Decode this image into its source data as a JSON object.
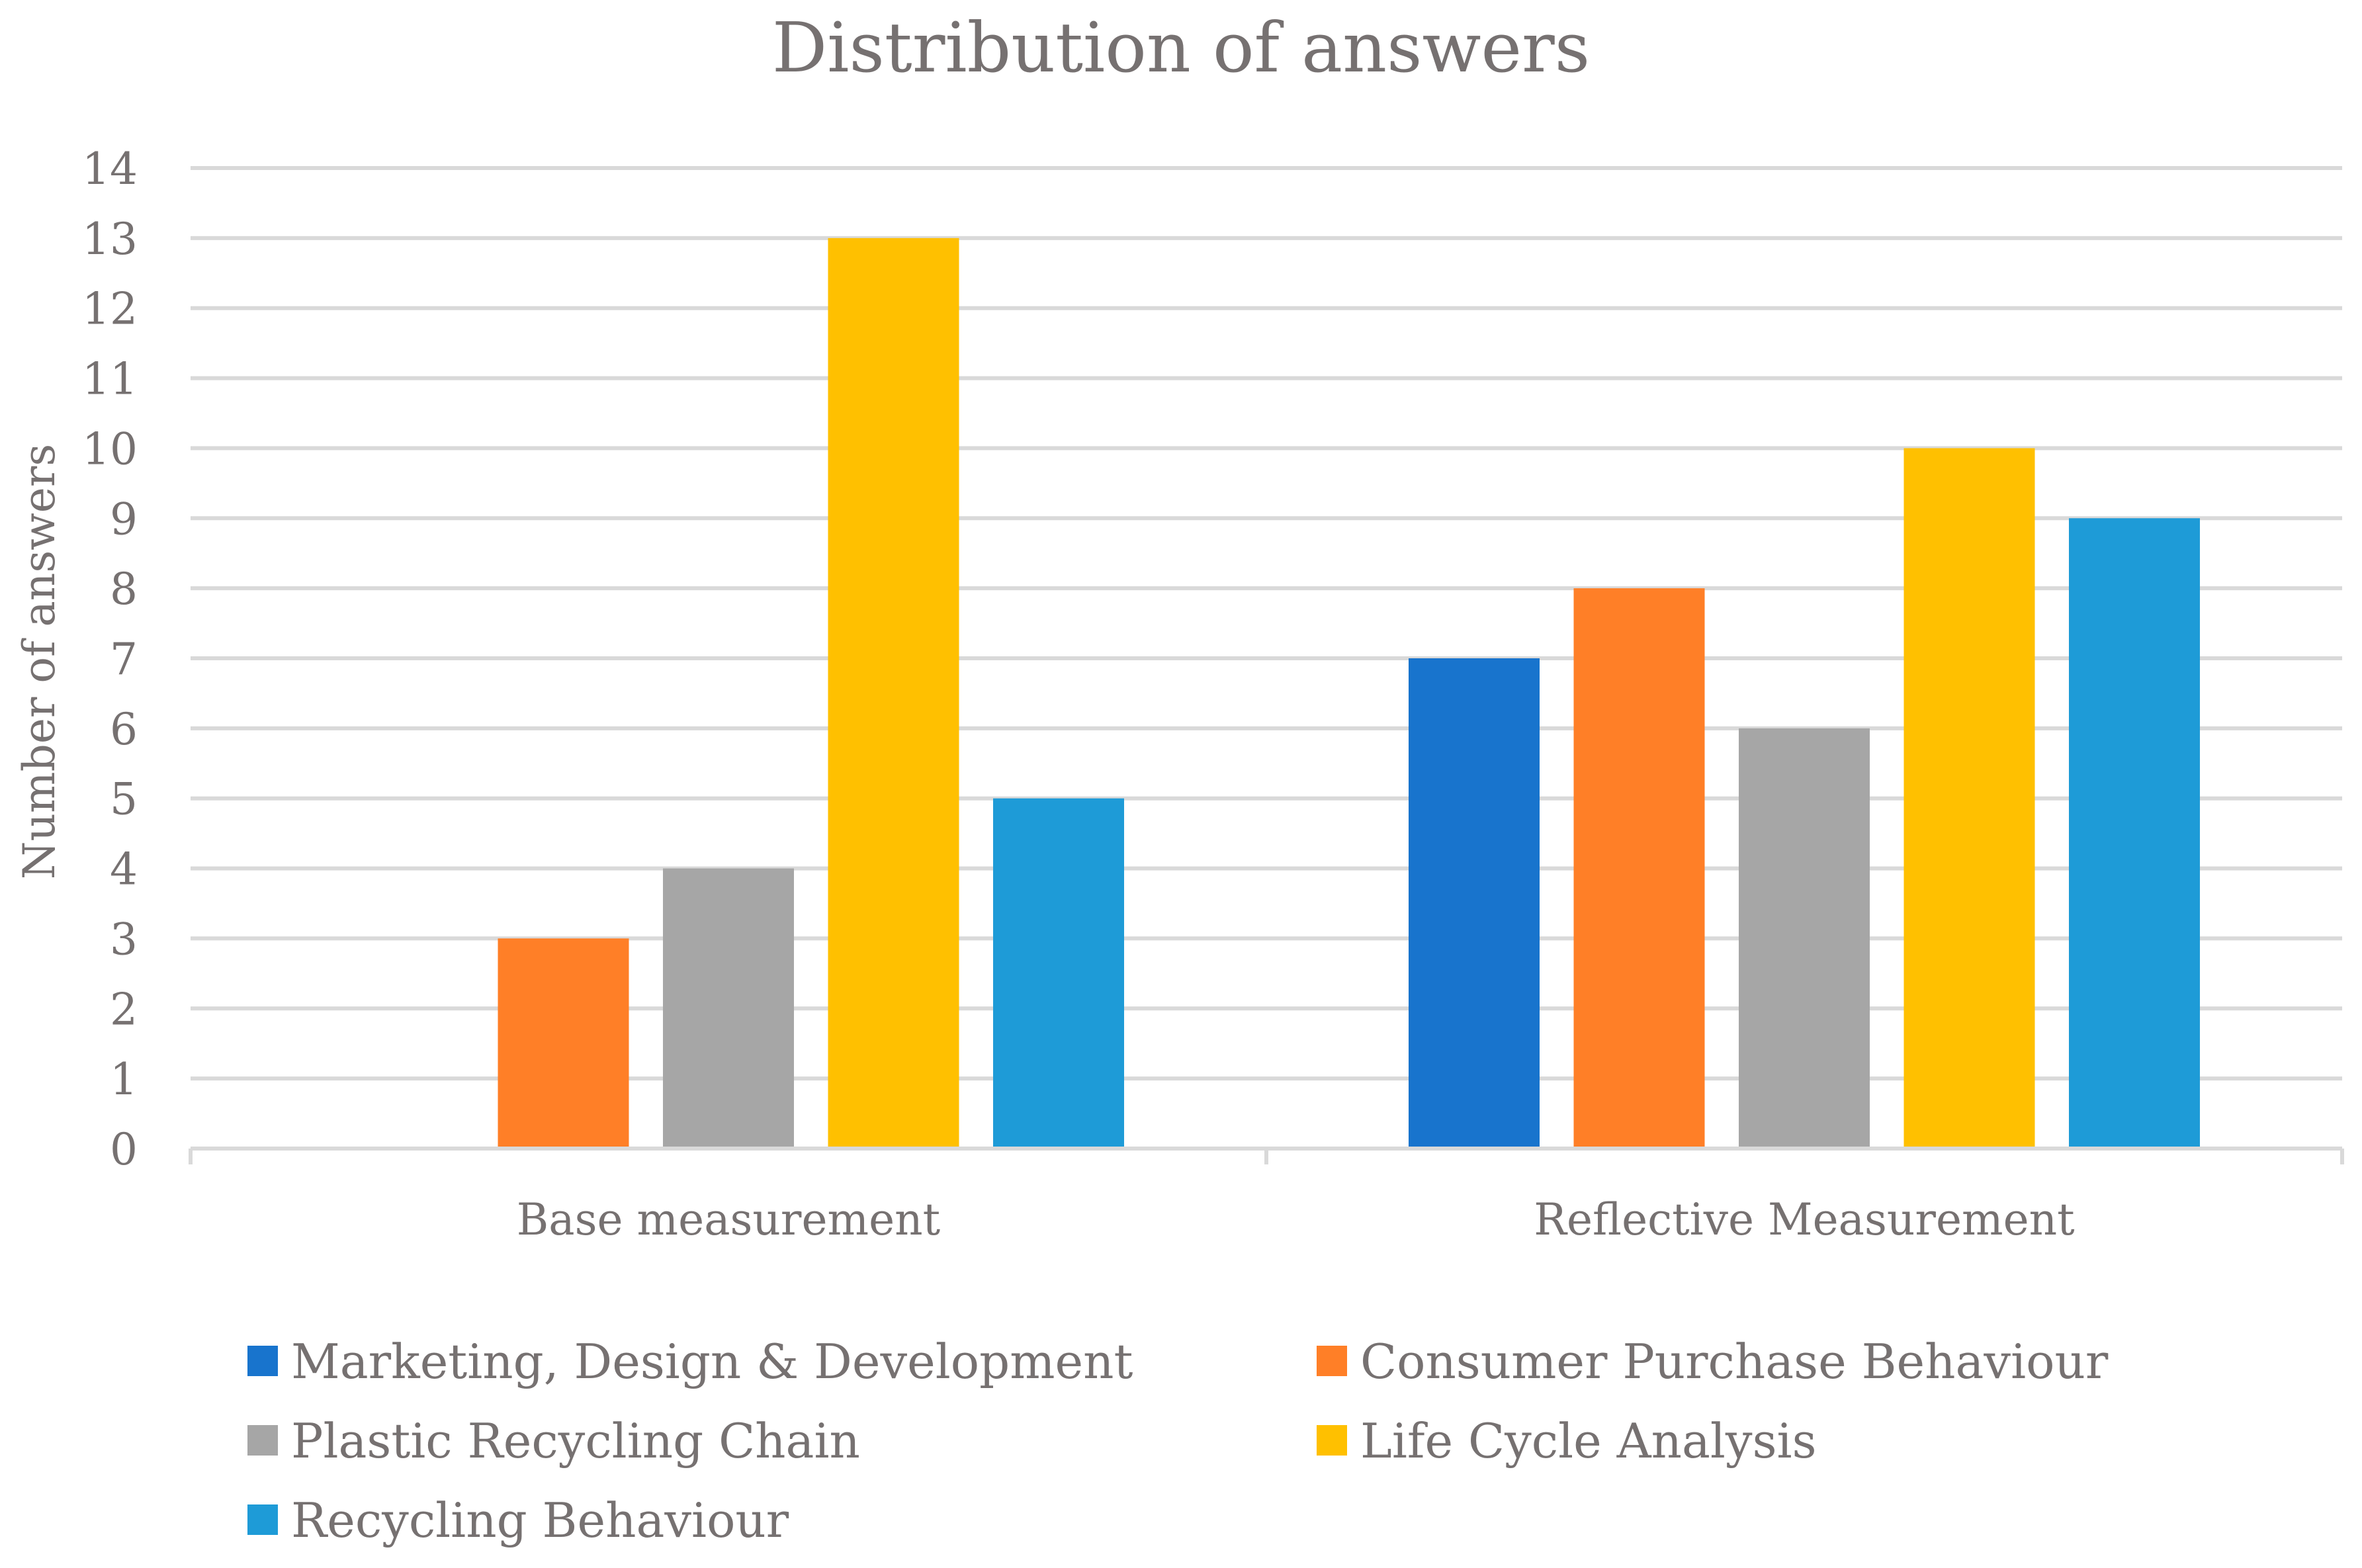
{
  "chart_data": {
    "type": "bar",
    "title": "Distribution of answers",
    "xlabel": "",
    "ylabel": "Number of answers",
    "ylim": [
      0,
      14
    ],
    "yticks": [
      0,
      1,
      2,
      3,
      4,
      5,
      6,
      7,
      8,
      9,
      10,
      11,
      12,
      13,
      14
    ],
    "grid": true,
    "legend_position": "bottom",
    "categories": [
      "Base measurement",
      "Reflective Measurement"
    ],
    "series": [
      {
        "name": "Marketing, Design & Development",
        "color": "#1874CD",
        "values": [
          0,
          7
        ]
      },
      {
        "name": "Consumer Purchase Behaviour",
        "color": "#FF7F27",
        "values": [
          3,
          8
        ]
      },
      {
        "name": "Plastic Recycling Chain",
        "color": "#A6A6A6",
        "values": [
          4,
          6
        ]
      },
      {
        "name": "Life Cycle Analysis",
        "color": "#FFC000",
        "values": [
          13,
          10
        ]
      },
      {
        "name": "Recycling Behaviour",
        "color": "#1E9BD7",
        "values": [
          5,
          9
        ]
      }
    ]
  }
}
